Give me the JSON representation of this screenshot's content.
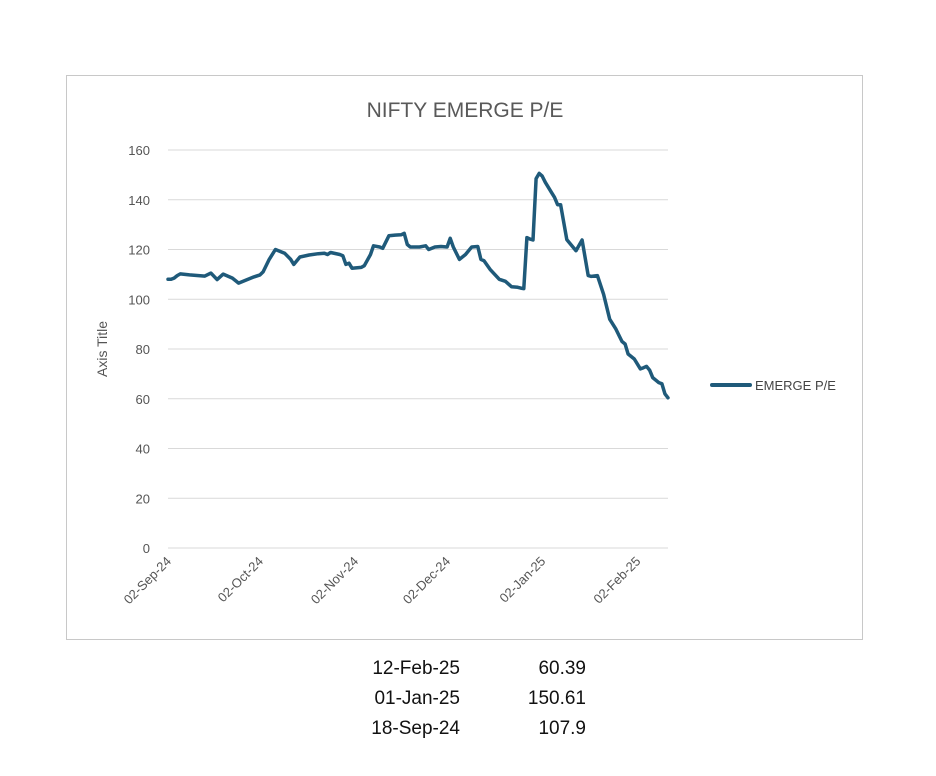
{
  "chart_data": {
    "type": "line",
    "title": "NIFTY EMERGE P/E",
    "ylabel": "Axis Title",
    "ylim": [
      0,
      160
    ],
    "yticks": [
      0,
      20,
      40,
      60,
      80,
      100,
      120,
      140,
      160
    ],
    "xlim": [
      "2024-09-02",
      "2025-02-12"
    ],
    "xticks": [
      {
        "date": "2024-09-02",
        "label": "02-Sep-24"
      },
      {
        "date": "2024-10-02",
        "label": "02-Oct-24"
      },
      {
        "date": "2024-11-02",
        "label": "02-Nov-24"
      },
      {
        "date": "2024-12-02",
        "label": "02-Dec-24"
      },
      {
        "date": "2025-01-02",
        "label": "02-Jan-25"
      },
      {
        "date": "2025-02-02",
        "label": "02-Feb-25"
      }
    ],
    "grid": true,
    "legend_position": "right",
    "series": [
      {
        "name": "EMERGE P/E",
        "color": "#1f5a7a",
        "points": [
          [
            "2024-09-02",
            108
          ],
          [
            "2024-09-03",
            108
          ],
          [
            "2024-09-04",
            108.5
          ],
          [
            "2024-09-05",
            109.5
          ],
          [
            "2024-09-06",
            110.2
          ],
          [
            "2024-09-09",
            109.8
          ],
          [
            "2024-09-12",
            109.5
          ],
          [
            "2024-09-14",
            109.3
          ],
          [
            "2024-09-16",
            110.5
          ],
          [
            "2024-09-18",
            107.9
          ],
          [
            "2024-09-20",
            110.1
          ],
          [
            "2024-09-23",
            108.5
          ],
          [
            "2024-09-25",
            106.5
          ],
          [
            "2024-09-27",
            107.5
          ],
          [
            "2024-09-30",
            109
          ],
          [
            "2024-10-02",
            109.8
          ],
          [
            "2024-10-03",
            111
          ],
          [
            "2024-10-05",
            116
          ],
          [
            "2024-10-07",
            120
          ],
          [
            "2024-10-10",
            118.5
          ],
          [
            "2024-10-12",
            116
          ],
          [
            "2024-10-13",
            114
          ],
          [
            "2024-10-15",
            117
          ],
          [
            "2024-10-18",
            117.8
          ],
          [
            "2024-10-21",
            118.3
          ],
          [
            "2024-10-23",
            118.5
          ],
          [
            "2024-10-24",
            118
          ],
          [
            "2024-10-25",
            118.8
          ],
          [
            "2024-10-28",
            118
          ],
          [
            "2024-10-29",
            117.5
          ],
          [
            "2024-10-30",
            114
          ],
          [
            "2024-10-31",
            114.5
          ],
          [
            "2024-11-01",
            112.5
          ],
          [
            "2024-11-04",
            112.8
          ],
          [
            "2024-11-05",
            113.5
          ],
          [
            "2024-11-07",
            118
          ],
          [
            "2024-11-08",
            121.5
          ],
          [
            "2024-11-10",
            121
          ],
          [
            "2024-11-11",
            120.5
          ],
          [
            "2024-11-13",
            125.5
          ],
          [
            "2024-11-15",
            125.8
          ],
          [
            "2024-11-17",
            125.9
          ],
          [
            "2024-11-18",
            126.5
          ],
          [
            "2024-11-19",
            122
          ],
          [
            "2024-11-20",
            121
          ],
          [
            "2024-11-23",
            121
          ],
          [
            "2024-11-25",
            121.5
          ],
          [
            "2024-11-26",
            120
          ],
          [
            "2024-11-28",
            121
          ],
          [
            "2024-11-30",
            121.2
          ],
          [
            "2024-12-02",
            121
          ],
          [
            "2024-12-03",
            124.5
          ],
          [
            "2024-12-04",
            121
          ],
          [
            "2024-12-06",
            116
          ],
          [
            "2024-12-08",
            118
          ],
          [
            "2024-12-10",
            121
          ],
          [
            "2024-12-12",
            121.2
          ],
          [
            "2024-12-13",
            116
          ],
          [
            "2024-12-14",
            115.5
          ],
          [
            "2024-12-16",
            112
          ],
          [
            "2024-12-19",
            108
          ],
          [
            "2024-12-21",
            107.2
          ],
          [
            "2024-12-23",
            105
          ],
          [
            "2024-12-25",
            104.8
          ],
          [
            "2024-12-26",
            104.5
          ],
          [
            "2024-12-27",
            104.3
          ],
          [
            "2024-12-28",
            124.8
          ],
          [
            "2024-12-29",
            124.2
          ],
          [
            "2024-12-30",
            123.8
          ],
          [
            "2024-12-31",
            148.5
          ],
          [
            "2025-01-01",
            150.61
          ],
          [
            "2025-01-02",
            149.5
          ],
          [
            "2025-01-03",
            147
          ],
          [
            "2025-01-05",
            143
          ],
          [
            "2025-01-06",
            141
          ],
          [
            "2025-01-07",
            138
          ],
          [
            "2025-01-08",
            138
          ],
          [
            "2025-01-10",
            124
          ],
          [
            "2025-01-13",
            119.5
          ],
          [
            "2025-01-15",
            123.8
          ],
          [
            "2025-01-17",
            109.5
          ],
          [
            "2025-01-18",
            109.2
          ],
          [
            "2025-01-20",
            109.5
          ],
          [
            "2025-01-22",
            102
          ],
          [
            "2025-01-24",
            92
          ],
          [
            "2025-01-26",
            88
          ],
          [
            "2025-01-27",
            85.5
          ],
          [
            "2025-01-28",
            83
          ],
          [
            "2025-01-29",
            82
          ],
          [
            "2025-01-30",
            78
          ],
          [
            "2025-02-01",
            76
          ],
          [
            "2025-02-03",
            72
          ],
          [
            "2025-02-04",
            72.5
          ],
          [
            "2025-02-05",
            73
          ],
          [
            "2025-02-06",
            71.5
          ],
          [
            "2025-02-07",
            68.5
          ],
          [
            "2025-02-09",
            66.5
          ],
          [
            "2025-02-10",
            66
          ],
          [
            "2025-02-11",
            62
          ],
          [
            "2025-02-12",
            60.39
          ]
        ]
      }
    ]
  },
  "notes": [
    {
      "date": "12-Feb-25",
      "value": "60.39"
    },
    {
      "date": "01-Jan-25",
      "value": "150.61"
    },
    {
      "date": "18-Sep-24",
      "value": "107.9"
    }
  ]
}
